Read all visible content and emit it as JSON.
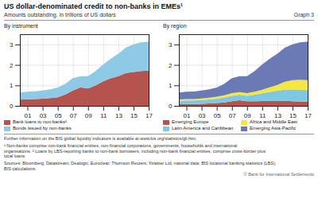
{
  "title": "US dollar-denominated credit to non-banks in EMEs¹",
  "subtitle": "Amounts outstanding, in trillions of US dollars",
  "annotations": [
    "Graph 3",
    "Further information on the BIS global liquidity indicators is available at www.bis.org/statistics/gli.htm.",
    "¹ Non-banks comprise non-bank financial entities, non-financial corporations, governments, households and international",
    "organisations.  ² Loans by LBS-reporting banks to non-bank borrowers, including non-bank financial entities, comprise cross-border plus",
    "local loans.",
    "Sources: Bloomberg; Datastream; Dealogic; Euroclear; Thomson Reuters; Xtrakter Ltd; national data; BIS locational banking statistics (LBS);",
    "BIS calculations.",
    "© Bank for International Settlements"
  ],
  "chart_data": [
    {
      "type": "area",
      "stacked": true,
      "title": "By instrument",
      "x": [
        0,
        1,
        2,
        3,
        4,
        5,
        6,
        7,
        8,
        9,
        10,
        11,
        12,
        13,
        14,
        15,
        16,
        17
      ],
      "xlim": [
        0,
        17
      ],
      "xticks": [
        {
          "value": 1,
          "label": "01"
        },
        {
          "value": 3,
          "label": "03"
        },
        {
          "value": 5,
          "label": "05"
        },
        {
          "value": 7,
          "label": "07"
        },
        {
          "value": 9,
          "label": "09"
        },
        {
          "value": 11,
          "label": "11"
        },
        {
          "value": 13,
          "label": "13"
        },
        {
          "value": 15,
          "label": "15"
        },
        {
          "value": 17,
          "label": "17"
        }
      ],
      "ylim": [
        0,
        3.5
      ],
      "yticks": [
        0,
        1,
        2,
        3
      ],
      "grid": true,
      "legend": "bottom",
      "series": [
        {
          "name": "Bank loans to non-banks²",
          "color": "#b5534e",
          "values": [
            0.3,
            0.32,
            0.33,
            0.35,
            0.38,
            0.42,
            0.55,
            0.75,
            0.9,
            0.85,
            1.0,
            1.2,
            1.35,
            1.45,
            1.6,
            1.65,
            1.7,
            1.72
          ]
        },
        {
          "name": "Bonds issued by non-banks",
          "color": "#8ecae6",
          "values": [
            0.35,
            0.37,
            0.38,
            0.4,
            0.43,
            0.47,
            0.53,
            0.6,
            0.55,
            0.6,
            0.7,
            0.82,
            0.95,
            1.1,
            1.25,
            1.35,
            1.4,
            1.42
          ]
        }
      ]
    },
    {
      "type": "area",
      "stacked": true,
      "title": "By region",
      "x": [
        0,
        1,
        2,
        3,
        4,
        5,
        6,
        7,
        8,
        9,
        10,
        11,
        12,
        13,
        14,
        15,
        16,
        17
      ],
      "xlim": [
        0,
        17
      ],
      "xticks": [
        {
          "value": 1,
          "label": "01"
        },
        {
          "value": 3,
          "label": "03"
        },
        {
          "value": 5,
          "label": "05"
        },
        {
          "value": 7,
          "label": "07"
        },
        {
          "value": 9,
          "label": "09"
        },
        {
          "value": 11,
          "label": "11"
        },
        {
          "value": 13,
          "label": "13"
        },
        {
          "value": 15,
          "label": "15"
        },
        {
          "value": 17,
          "label": "17"
        }
      ],
      "ylim": [
        0,
        3.5
      ],
      "yticks": [
        0,
        1,
        2,
        3
      ],
      "grid": true,
      "legend": "bottom",
      "series": [
        {
          "name": "Emerging Europe",
          "color": "#b5534e",
          "values": [
            0.08,
            0.09,
            0.09,
            0.1,
            0.12,
            0.14,
            0.17,
            0.22,
            0.27,
            0.22,
            0.22,
            0.23,
            0.24,
            0.24,
            0.24,
            0.22,
            0.21,
            0.2
          ]
        },
        {
          "name": "Latin America and Caribbean",
          "color": "#7ec8e3",
          "values": [
            0.16,
            0.17,
            0.17,
            0.18,
            0.19,
            0.21,
            0.24,
            0.27,
            0.27,
            0.27,
            0.32,
            0.38,
            0.44,
            0.5,
            0.56,
            0.58,
            0.58,
            0.57
          ]
        },
        {
          "name": "Africa and Middle East",
          "color": "#f5e642",
          "values": [
            0.07,
            0.07,
            0.07,
            0.08,
            0.09,
            0.1,
            0.11,
            0.13,
            0.13,
            0.13,
            0.15,
            0.18,
            0.22,
            0.28,
            0.38,
            0.45,
            0.48,
            0.48
          ]
        },
        {
          "name": "Emerging Asia-Pacific",
          "color": "#6b7ab5",
          "values": [
            0.34,
            0.36,
            0.37,
            0.39,
            0.41,
            0.44,
            0.56,
            0.73,
            0.78,
            0.83,
            1.01,
            1.23,
            1.4,
            1.53,
            1.67,
            1.75,
            1.83,
            1.89
          ]
        }
      ]
    }
  ]
}
